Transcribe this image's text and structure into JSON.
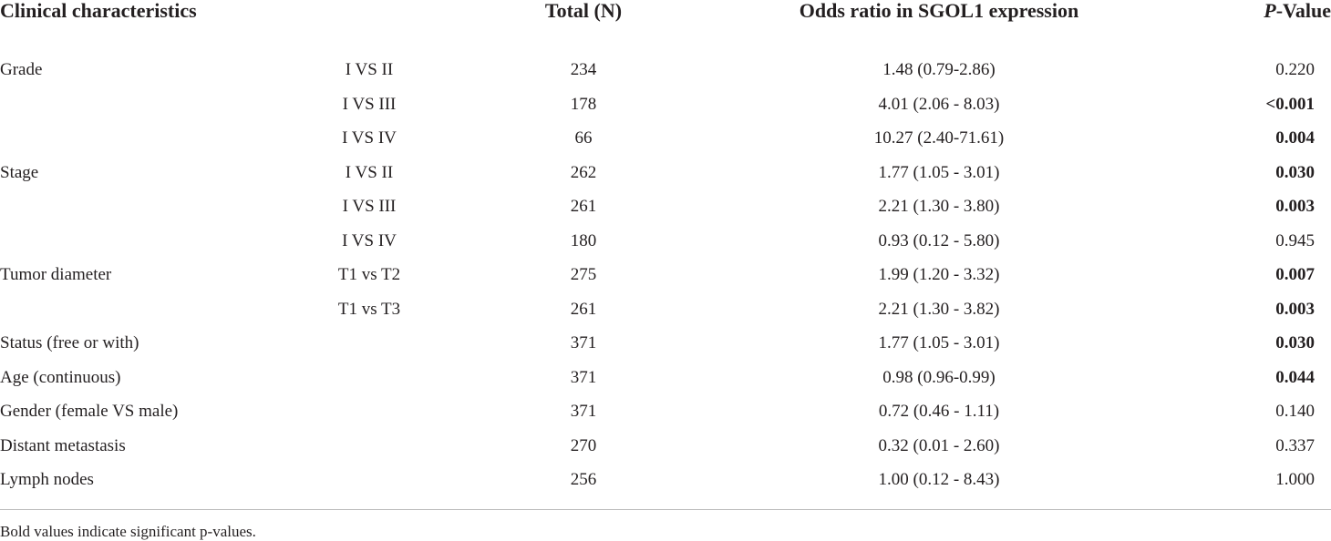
{
  "header": {
    "characteristics": "Clinical characteristics",
    "total": "Total (N)",
    "odds_ratio": "Odds ratio in SGOL1 expression",
    "p_value": {
      "italic": "P",
      "text": "-Value"
    }
  },
  "rows": [
    {
      "characteristic": "Grade",
      "comparison": "I VS II",
      "total": 234,
      "odds_ratio": "1.48 (0.79-2.86)",
      "p_value": "0.220",
      "significant": false
    },
    {
      "characteristic": null,
      "comparison": "I VS III",
      "total": 178,
      "odds_ratio": "4.01 (2.06 - 8.03)",
      "p_value": "<0.001",
      "significant": true
    },
    {
      "characteristic": null,
      "comparison": "I VS IV",
      "total": 66,
      "odds_ratio": "10.27 (2.40-71.61)",
      "p_value": "0.004",
      "significant": true
    },
    {
      "characteristic": "Stage",
      "comparison": "I VS II",
      "total": 262,
      "odds_ratio": "1.77 (1.05 - 3.01)",
      "p_value": "0.030",
      "significant": true
    },
    {
      "characteristic": null,
      "comparison": "I VS III",
      "total": 261,
      "odds_ratio": "2.21 (1.30 - 3.80)",
      "p_value": "0.003",
      "significant": true
    },
    {
      "characteristic": null,
      "comparison": "I VS IV",
      "total": 180,
      "odds_ratio": "0.93 (0.12 - 5.80)",
      "p_value": "0.945",
      "significant": false
    },
    {
      "characteristic": "Tumor diameter",
      "comparison": "T1 vs T2",
      "total": 275,
      "odds_ratio": "1.99 (1.20 - 3.32)",
      "p_value": "0.007",
      "significant": true
    },
    {
      "characteristic": null,
      "comparison": "T1 vs T3",
      "total": 261,
      "odds_ratio": "2.21 (1.30 - 3.82)",
      "p_value": "0.003",
      "significant": true
    },
    {
      "characteristic": "Status (free or with)",
      "comparison": null,
      "total": 371,
      "odds_ratio": "1.77 (1.05 - 3.01)",
      "p_value": "0.030",
      "significant": true
    },
    {
      "characteristic": "Age (continuous)",
      "comparison": null,
      "total": 371,
      "odds_ratio": "0.98 (0.96-0.99)",
      "p_value": "0.044",
      "significant": true
    },
    {
      "characteristic": "Gender (female VS male)",
      "comparison": null,
      "total": 371,
      "odds_ratio": "0.72 (0.46 - 1.11)",
      "p_value": "0.140",
      "significant": false
    },
    {
      "characteristic": "Distant metastasis",
      "comparison": null,
      "total": 270,
      "odds_ratio": "0.32 (0.01 - 2.60)",
      "p_value": "0.337",
      "significant": false
    },
    {
      "characteristic": "Lymph nodes",
      "comparison": null,
      "total": 256,
      "odds_ratio": "1.00 (0.12 - 8.43)",
      "p_value": "1.000",
      "significant": false
    }
  ],
  "footnote": "Bold values indicate significant p-values."
}
